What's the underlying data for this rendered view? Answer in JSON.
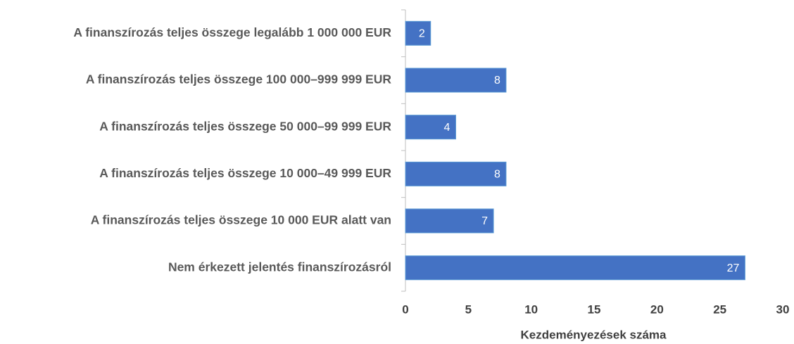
{
  "chart_data": {
    "type": "bar",
    "orientation": "horizontal",
    "xlabel": "Kezdeményezések száma",
    "categories": [
      "A finanszírozás teljes összege legalább 1 000 000 EUR",
      "A finanszírozás teljes összege 100 000–999 999 EUR",
      "A finanszírozás teljes összege 50 000–99 999 EUR",
      "A finanszírozás teljes összege 10 000–49 999 EUR",
      "A finanszírozás teljes összege 10 000 EUR alatt van",
      "Nem érkezett jelentés finanszírozásról"
    ],
    "values": [
      2,
      8,
      4,
      8,
      7,
      27
    ],
    "color": "#4472c4",
    "xlim": [
      0,
      30
    ],
    "xticks": [
      0,
      5,
      10,
      15,
      20,
      25,
      30
    ],
    "grid": false
  }
}
